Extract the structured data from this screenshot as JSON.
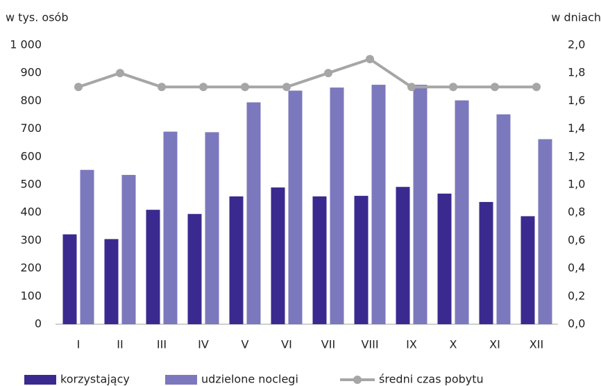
{
  "chart_data": {
    "type": "bar_line",
    "y_label": "w tys. osób",
    "y2_label": "w dniach",
    "categories": [
      "I",
      "II",
      "III",
      "IV",
      "V",
      "VI",
      "VII",
      "VIII",
      "IX",
      "X",
      "XI",
      "XII"
    ],
    "series": [
      {
        "name": "korzystający",
        "color": "#3a2a8f",
        "type": "bar",
        "values": [
          322,
          305,
          410,
          395,
          458,
          490,
          458,
          460,
          492,
          468,
          438,
          387
        ]
      },
      {
        "name": "udzielone noclegi",
        "color": "#7b78bd",
        "type": "bar",
        "values": [
          553,
          535,
          690,
          688,
          795,
          837,
          848,
          858,
          858,
          802,
          752,
          663
        ]
      },
      {
        "name": "średni czas pobytu",
        "color": "#a6a6a6",
        "type": "line",
        "axis": "y2",
        "values": [
          1.7,
          1.8,
          1.7,
          1.7,
          1.7,
          1.7,
          1.8,
          1.9,
          1.7,
          1.7,
          1.7,
          1.7
        ]
      }
    ],
    "ylim": [
      0,
      1000
    ],
    "yticks": [
      0,
      100,
      200,
      300,
      400,
      500,
      600,
      700,
      800,
      900,
      {
        "value": 1000,
        "label": "1 000"
      }
    ],
    "y2lim": [
      0,
      2
    ],
    "y2ticks": [
      {
        "value": 0,
        "label": "0,0"
      },
      {
        "value": 0.2,
        "label": "0,2"
      },
      {
        "value": 0.4,
        "label": "0,4"
      },
      {
        "value": 0.6,
        "label": "0,6"
      },
      {
        "value": 0.8,
        "label": "0,8"
      },
      {
        "value": 1,
        "label": "1,0"
      },
      {
        "value": 1.2,
        "label": "1,2"
      },
      {
        "value": 1.4,
        "label": "1,4"
      },
      {
        "value": 1.6,
        "label": "1,6"
      },
      {
        "value": 1.8,
        "label": "1,8"
      },
      {
        "value": 2,
        "label": "2,0"
      }
    ],
    "legend": "bottom"
  }
}
